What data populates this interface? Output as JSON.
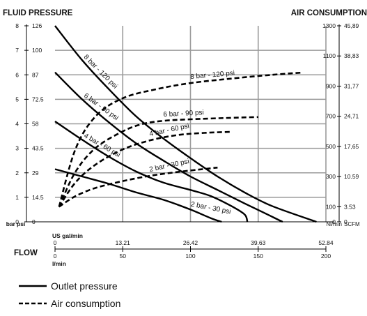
{
  "chart_data": {
    "type": "line",
    "title_left": "FLUID PRESSURE",
    "title_right": "AIR CONSUMPTION",
    "left_axis": {
      "unit_bar": "bar",
      "unit_psi": "psi",
      "bar_ticks": [
        "0",
        "1",
        "2",
        "3",
        "4",
        "5",
        "6",
        "7",
        "8"
      ],
      "psi_ticks": [
        "0",
        "14.5",
        "29",
        "43.5",
        "58",
        "72.5",
        "87",
        "100",
        "126"
      ],
      "range": [
        0,
        8
      ]
    },
    "right_axis": {
      "unit_nl": "Nl/min",
      "unit_scfm": "SCFM",
      "nl_ticks": [
        "0",
        "100",
        "300",
        "500",
        "700",
        "900",
        "1100",
        "1300"
      ],
      "scfm_ticks": [
        "0",
        "3.53",
        "10.59",
        "17,65",
        "24,71",
        "31,77",
        "38,83",
        "45,89"
      ],
      "range": [
        0,
        1300
      ]
    },
    "flow_label": "FLOW",
    "x_axis": {
      "unit_gal": "US gal/min",
      "unit_lmin": "l/min",
      "gal_ticks": [
        "0",
        "13.21",
        "26.42",
        "39.63",
        "52.84"
      ],
      "lmin_ticks": [
        "0",
        "50",
        "100",
        "150",
        "200"
      ],
      "range": [
        0,
        200
      ]
    },
    "grid": true,
    "series": [
      {
        "name": "8 bar - 120 psi",
        "kind": "outlet",
        "axis": "left",
        "points": [
          [
            0,
            8
          ],
          [
            20,
            6.6
          ],
          [
            40,
            5.4
          ],
          [
            60,
            4.3
          ],
          [
            80,
            3.4
          ],
          [
            100,
            2.6
          ],
          [
            120,
            1.85
          ],
          [
            140,
            1.2
          ],
          [
            160,
            0.65
          ],
          [
            193,
            0
          ]
        ]
      },
      {
        "name": "6 bar - 90 psi",
        "kind": "outlet",
        "axis": "left",
        "points": [
          [
            0,
            6.1
          ],
          [
            20,
            5.0
          ],
          [
            40,
            4.05
          ],
          [
            60,
            3.2
          ],
          [
            80,
            2.5
          ],
          [
            100,
            1.85
          ],
          [
            120,
            1.3
          ],
          [
            140,
            0.75
          ],
          [
            155,
            0.35
          ],
          [
            168,
            0
          ]
        ]
      },
      {
        "name": "4 bar - 60 psi",
        "kind": "outlet",
        "axis": "left",
        "points": [
          [
            0,
            4.1
          ],
          [
            20,
            3.35
          ],
          [
            40,
            2.65
          ],
          [
            60,
            2.05
          ],
          [
            80,
            1.6
          ],
          [
            100,
            1.3
          ],
          [
            115,
            1.05
          ],
          [
            130,
            0.65
          ],
          [
            140,
            0.3
          ],
          [
            142,
            0
          ]
        ]
      },
      {
        "name": "2 bar - 30 psi",
        "kind": "outlet",
        "axis": "left",
        "points": [
          [
            0,
            2.15
          ],
          [
            20,
            1.85
          ],
          [
            40,
            1.55
          ],
          [
            60,
            1.2
          ],
          [
            80,
            0.9
          ],
          [
            100,
            0.5
          ],
          [
            115,
            0.15
          ],
          [
            123,
            0
          ]
        ]
      },
      {
        "name": "8 bar - 120 psi",
        "kind": "air",
        "axis": "right",
        "points": [
          [
            3,
            100
          ],
          [
            15,
            480
          ],
          [
            30,
            700
          ],
          [
            50,
            820
          ],
          [
            75,
            880
          ],
          [
            100,
            920
          ],
          [
            130,
            950
          ],
          [
            160,
            975
          ],
          [
            183,
            990
          ]
        ]
      },
      {
        "name": "6 bar - 90 psi",
        "kind": "air",
        "axis": "right",
        "points": [
          [
            3,
            100
          ],
          [
            15,
            330
          ],
          [
            30,
            490
          ],
          [
            50,
            600
          ],
          [
            65,
            650
          ],
          [
            80,
            670
          ],
          [
            100,
            680
          ],
          [
            130,
            690
          ],
          [
            150,
            695
          ]
        ]
      },
      {
        "name": "4 bar - 60 psi",
        "kind": "air",
        "axis": "right",
        "points": [
          [
            3,
            100
          ],
          [
            15,
            260
          ],
          [
            30,
            380
          ],
          [
            50,
            480
          ],
          [
            70,
            540
          ],
          [
            90,
            575
          ],
          [
            110,
            590
          ],
          [
            130,
            597
          ]
        ]
      },
      {
        "name": "2 bar - 30 psi",
        "kind": "air",
        "axis": "right",
        "points": [
          [
            3,
            100
          ],
          [
            15,
            170
          ],
          [
            30,
            225
          ],
          [
            50,
            270
          ],
          [
            70,
            305
          ],
          [
            90,
            330
          ],
          [
            110,
            350
          ],
          [
            120,
            360
          ]
        ]
      }
    ],
    "legend": {
      "outlet": "Outlet pressure",
      "air": "Air consumption"
    }
  }
}
